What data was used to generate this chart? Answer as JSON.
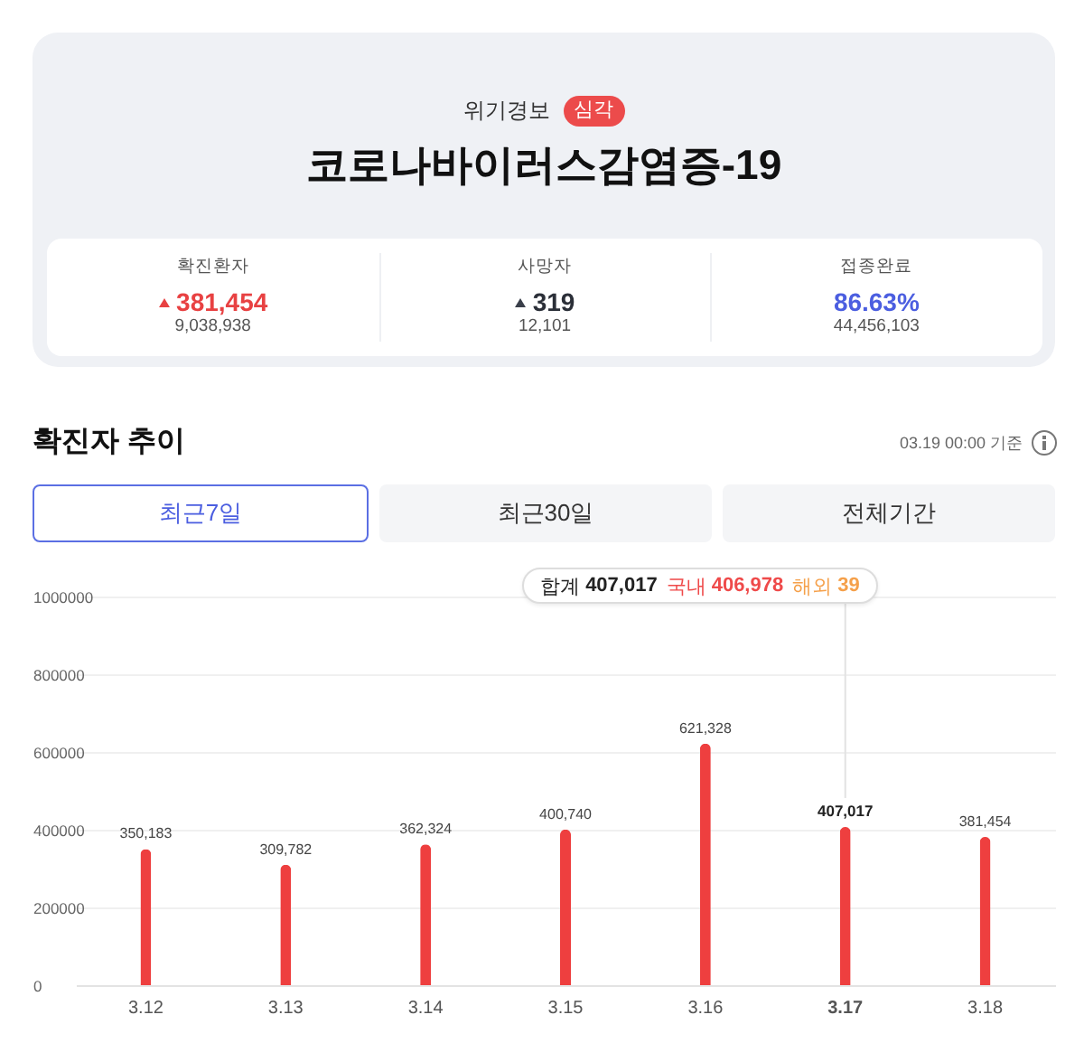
{
  "chart_data": [
    {
      "type": "other",
      "title": "코로나바이러스감염증-19",
      "subtitle": "위기경보",
      "annotations": [
        "심각",
        "확진환자",
        "381,454",
        "9,038,938",
        "사망자",
        "319",
        "12,101",
        "접종완료",
        "86.63%",
        "44,456,103"
      ]
    },
    {
      "type": "bar",
      "title": "확진자 추이",
      "categories": [
        "3.12",
        "3.13",
        "3.14",
        "3.15",
        "3.16",
        "3.17",
        "3.18"
      ],
      "values": [
        350183,
        309782,
        362324,
        400740,
        621328,
        407017,
        381454
      ],
      "value_labels": [
        "350,183",
        "309,782",
        "362,324",
        "400,740",
        "621,328",
        "407,017",
        "381,454"
      ],
      "color": "#ee3f3f",
      "ylim": [
        0,
        1000000
      ],
      "yticks": [
        0,
        200000,
        400000,
        600000,
        800000,
        1000000
      ],
      "grid": "y",
      "ref_lines": [
        {
          "axis": "x",
          "value": "3.17",
          "label": "합계 407,017 국내 406,978 해외 39",
          "color": "#e2e2e2"
        }
      ],
      "annotations": [
        "03.19 00:00 기준",
        "최근7일",
        "최근30일",
        "전체기간"
      ]
    }
  ]
}
